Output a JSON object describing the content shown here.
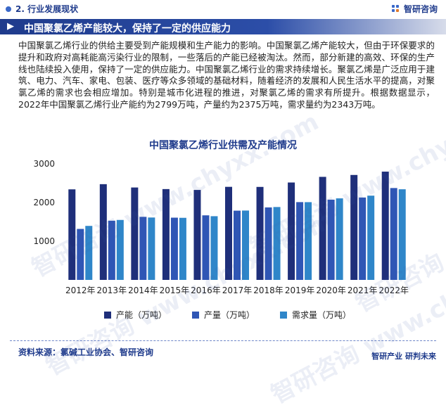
{
  "header": {
    "section": "2. 行业发展现状",
    "brand": "智研咨询"
  },
  "banner": {
    "title": "中国聚氯乙烯产能较大，保持了一定的供应能力"
  },
  "paragraph": "中国聚氯乙烯行业的供给主要受到产能规模和生产能力的影响。中国聚氯乙烯产能较大，但由于环保要求的提升和政府对高耗能高污染行业的限制，一些落后的产能已经被淘汰。然而，部分新建的高效、环保的生产线也陆续投入使用，保持了一定的供应能力。中国聚氯乙烯行业的需求持续增长。聚氯乙烯是广泛应用于建筑、电力、汽车、家电、包装、医疗等众多领域的基础材料，随着经济的发展和人民生活水平的提高，对聚氯乙烯的需求也会相应增加。特别是城市化进程的推进，对聚氯乙烯的需求有所提升。根据数据显示，2022年中国聚氯乙烯行业产能约为2799万吨，产量约为2375万吨，需求量约为2343万吨。",
  "chart_data": {
    "type": "bar",
    "title": "中国聚氯乙烯行业供需及产能情况",
    "categories": [
      "2012年",
      "2013年",
      "2014年",
      "2015年",
      "2016年",
      "2017年",
      "2018年",
      "2019年",
      "2020年",
      "2021年",
      "2022年"
    ],
    "series": [
      {
        "name": "产能（万吨）",
        "color": "#1f2f7a",
        "values": [
          2341,
          2475,
          2389,
          2348,
          2326,
          2406,
          2404,
          2518,
          2664,
          2713,
          2799
        ]
      },
      {
        "name": "产量（万吨）",
        "color": "#2f56b5",
        "values": [
          1318,
          1530,
          1630,
          1609,
          1669,
          1790,
          1874,
          2011,
          2074,
          2130,
          2375
        ]
      },
      {
        "name": "需求量（万吨）",
        "color": "#2f86c9",
        "values": [
          1396,
          1550,
          1613,
          1605,
          1647,
          1793,
          1884,
          2010,
          2108,
          2178,
          2343
        ]
      }
    ],
    "yticks": [
      1000,
      2000,
      3000
    ],
    "ylim": [
      0,
      3000
    ],
    "grid": false,
    "legend": "bottom"
  },
  "footer": {
    "source": "资料来源：氯碱工业协会、智研咨询",
    "brand": "智研产业 研判未来"
  },
  "watermark": "智研咨询 www.chyxx.com"
}
